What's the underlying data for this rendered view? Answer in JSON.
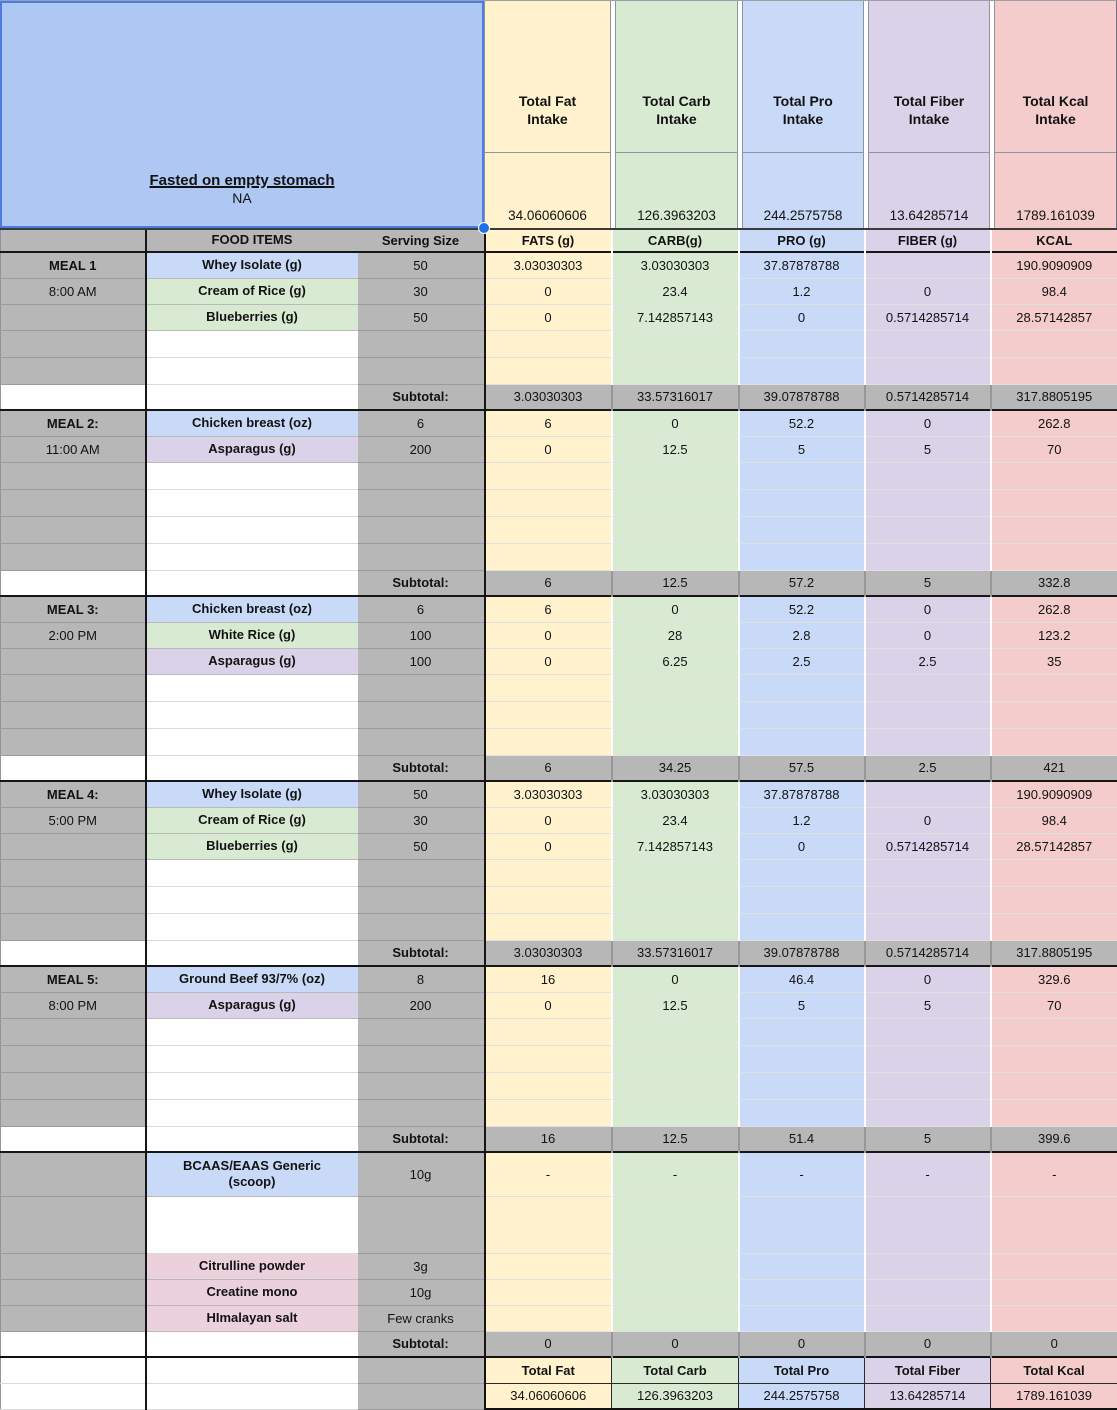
{
  "palette": {
    "yellow": "#fff2cc",
    "green": "#d9ead3",
    "blue": "#c9daf8",
    "purple": "#d9d2e9",
    "red": "#f4cccc",
    "pink": "#ead1dc",
    "gray": "#b7b7b7",
    "note_blue": "#aec8f3",
    "selection": "#1f6fe0"
  },
  "top": {
    "note": {
      "title": "Fasted on empty stomach",
      "value": "NA"
    },
    "intakes": [
      {
        "label": "Total Fat\nIntake",
        "value": "34.06060606"
      },
      {
        "label": "Total Carb\nIntake",
        "value": "126.3963203"
      },
      {
        "label": "Total Pro\nIntake",
        "value": "244.2575758"
      },
      {
        "label": "Total Fiber\nIntake",
        "value": "13.64285714"
      },
      {
        "label": "Total Kcal\nIntake",
        "value": "1789.161039"
      }
    ]
  },
  "table": {
    "headers": {
      "food": "FOOD ITEMS",
      "serving": "Serving Size",
      "nutrients": [
        "FATS (g)",
        "CARB(g)",
        "PRO (g)",
        "FIBER (g)",
        "KCAL"
      ]
    },
    "subtotal_label": "Subtotal:"
  },
  "meals": [
    {
      "name": "MEAL 1",
      "time": "8:00 AM",
      "empty_rows": 2,
      "items": [
        {
          "food": "Whey Isolate (g)",
          "color": "blue",
          "serving": "50",
          "values": [
            "3.03030303",
            "3.03030303",
            "37.87878788",
            "",
            "190.9090909"
          ]
        },
        {
          "food": "Cream of Rice (g)",
          "color": "green",
          "serving": "30",
          "values": [
            "0",
            "23.4",
            "1.2",
            "0",
            "98.4"
          ]
        },
        {
          "food": "Blueberries (g)",
          "color": "green",
          "serving": "50",
          "values": [
            "0",
            "7.142857143",
            "0",
            "0.5714285714",
            "28.57142857"
          ]
        }
      ],
      "subtotal": [
        "3.03030303",
        "33.57316017",
        "39.07878788",
        "0.5714285714",
        "317.8805195"
      ]
    },
    {
      "name": "MEAL 2:",
      "time": "11:00 AM",
      "empty_rows": 4,
      "items": [
        {
          "food": "Chicken breast (oz)",
          "color": "blue",
          "serving": "6",
          "values": [
            "6",
            "0",
            "52.2",
            "0",
            "262.8"
          ]
        },
        {
          "food": "Asparagus  (g)",
          "color": "purple",
          "serving": "200",
          "values": [
            "0",
            "12.5",
            "5",
            "5",
            "70"
          ]
        }
      ],
      "subtotal": [
        "6",
        "12.5",
        "57.2",
        "5",
        "332.8"
      ]
    },
    {
      "name": "MEAL 3:",
      "time": "2:00 PM",
      "empty_rows": 3,
      "items": [
        {
          "food": "Chicken breast (oz)",
          "color": "blue",
          "serving": "6",
          "values": [
            "6",
            "0",
            "52.2",
            "0",
            "262.8"
          ]
        },
        {
          "food": "White Rice  (g)",
          "color": "green",
          "serving": "100",
          "values": [
            "0",
            "28",
            "2.8",
            "0",
            "123.2"
          ]
        },
        {
          "food": "Asparagus  (g)",
          "color": "purple",
          "serving": "100",
          "values": [
            "0",
            "6.25",
            "2.5",
            "2.5",
            "35"
          ]
        }
      ],
      "subtotal": [
        "6",
        "34.25",
        "57.5",
        "2.5",
        "421"
      ]
    },
    {
      "name": "MEAL 4:",
      "time": "5:00 PM",
      "empty_rows": 3,
      "items": [
        {
          "food": "Whey Isolate (g)",
          "color": "blue",
          "serving": "50",
          "values": [
            "3.03030303",
            "3.03030303",
            "37.87878788",
            "",
            "190.9090909"
          ]
        },
        {
          "food": "Cream of Rice (g)",
          "color": "green",
          "serving": "30",
          "values": [
            "0",
            "23.4",
            "1.2",
            "0",
            "98.4"
          ]
        },
        {
          "food": "Blueberries (g)",
          "color": "green",
          "serving": "50",
          "values": [
            "0",
            "7.142857143",
            "0",
            "0.5714285714",
            "28.57142857"
          ]
        }
      ],
      "subtotal": [
        "3.03030303",
        "33.57316017",
        "39.07878788",
        "0.5714285714",
        "317.8805195"
      ]
    },
    {
      "name": "MEAL 5:",
      "time": "8:00 PM",
      "empty_rows": 4,
      "items": [
        {
          "food": "Ground Beef 93/7% (oz)",
          "color": "blue",
          "serving": "8",
          "values": [
            "16",
            "0",
            "46.4",
            "0",
            "329.6"
          ]
        },
        {
          "food": "Asparagus  (g)",
          "color": "purple",
          "serving": "200",
          "values": [
            "0",
            "12.5",
            "5",
            "5",
            "70"
          ]
        }
      ],
      "subtotal": [
        "16",
        "12.5",
        "51.4",
        "5",
        "399.6"
      ]
    }
  ],
  "supplements": {
    "items": [
      {
        "food": "BCAAS/EAAS Generic\n(scoop)",
        "color": "blue",
        "serving": "10g",
        "values": [
          "-",
          "-",
          "-",
          "-",
          "-"
        ],
        "height": "h44",
        "section_start": true
      },
      {
        "food": "",
        "color": "white",
        "serving": "",
        "values": [
          "",
          "",
          "",
          "",
          ""
        ],
        "height": "h57"
      },
      {
        "food": "Citrulline powder",
        "color": "pink",
        "serving": "3g",
        "values": [
          "",
          "",
          "",
          "",
          ""
        ]
      },
      {
        "food": "Creatine mono",
        "color": "pink",
        "serving": "10g",
        "values": [
          "",
          "",
          "",
          "",
          ""
        ]
      },
      {
        "food": "HImalayan salt",
        "color": "pink",
        "serving": "Few cranks",
        "values": [
          "",
          "",
          "",
          "",
          ""
        ]
      }
    ],
    "subtotal": [
      "0",
      "0",
      "0",
      "0",
      "0"
    ]
  },
  "totals": {
    "headers": [
      "Total Fat",
      "Total Carb",
      "Total Pro",
      "Total Fiber",
      "Total Kcal"
    ],
    "values": [
      "34.06060606",
      "126.3963203",
      "244.2575758",
      "13.64285714",
      "1789.161039"
    ]
  }
}
